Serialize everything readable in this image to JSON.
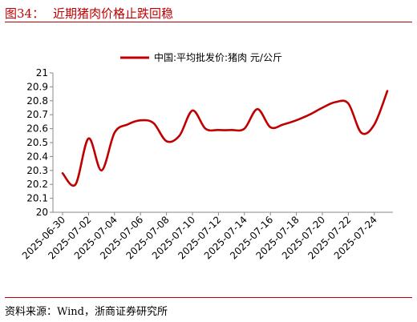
{
  "header": {
    "figure_label": "图34：",
    "title": "近期猪肉价格止跌回稳"
  },
  "footer": {
    "source": "资料来源：Wind，浙商证券研究所"
  },
  "colors": {
    "accent": "#c00000",
    "series": "#c00000",
    "rule": "#c00000"
  },
  "chart_data": {
    "type": "line",
    "title": "",
    "xlabel": "",
    "ylabel": "",
    "ylim": [
      20,
      21
    ],
    "yticks": [
      20,
      20.1,
      20.2,
      20.3,
      20.4,
      20.5,
      20.6,
      20.7,
      20.8,
      20.9,
      21
    ],
    "grid": false,
    "legend_position": "top",
    "x_tick_labels": [
      "2025-06-30",
      "2025-07-02",
      "2025-07-04",
      "2025-07-06",
      "2025-07-08",
      "2025-07-10",
      "2025-07-12",
      "2025-07-14",
      "2025-07-16",
      "2025-07-18",
      "2025-07-20",
      "2025-07-22",
      "2025-07-24"
    ],
    "x": [
      "2025-06-30",
      "2025-07-01",
      "2025-07-02",
      "2025-07-03",
      "2025-07-04",
      "2025-07-05",
      "2025-07-06",
      "2025-07-07",
      "2025-07-08",
      "2025-07-09",
      "2025-07-10",
      "2025-07-11",
      "2025-07-12",
      "2025-07-13",
      "2025-07-14",
      "2025-07-15",
      "2025-07-16",
      "2025-07-17",
      "2025-07-18",
      "2025-07-19",
      "2025-07-20",
      "2025-07-21",
      "2025-07-22",
      "2025-07-23",
      "2025-07-24",
      "2025-07-25"
    ],
    "series": [
      {
        "name": "中国:平均批发价:猪肉 元/公斤",
        "values": [
          20.28,
          20.2,
          20.53,
          20.3,
          20.57,
          20.63,
          20.66,
          20.64,
          20.51,
          20.55,
          20.73,
          20.6,
          20.59,
          20.59,
          20.6,
          20.74,
          20.61,
          20.63,
          20.66,
          20.7,
          20.75,
          20.79,
          20.78,
          20.57,
          20.63,
          20.87
        ]
      }
    ]
  }
}
